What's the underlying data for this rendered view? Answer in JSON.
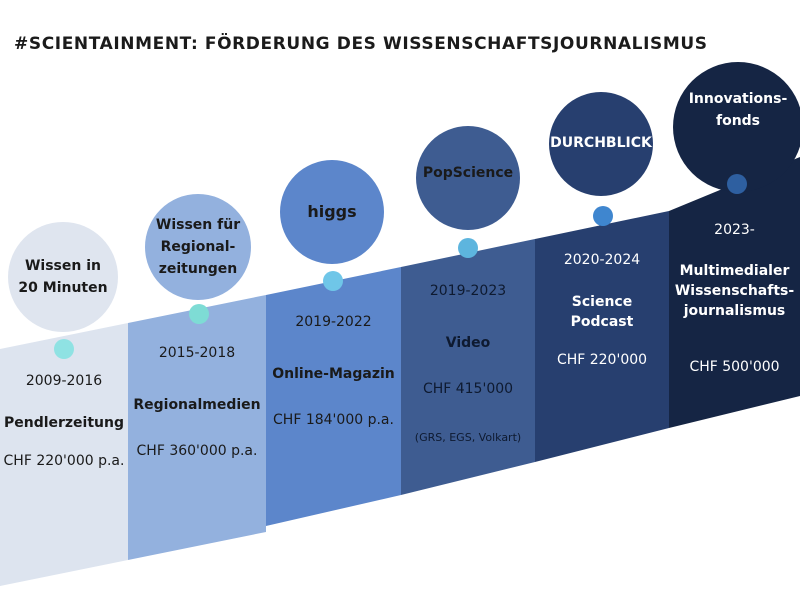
{
  "title": "#SCIENTAINMENT: FÖRDERUNG DES WISSENSCHAFTSJOURNALISMUS",
  "colors": {
    "col1": "#dde4ef",
    "col2": "#93b1de",
    "col3": "#5c86cb",
    "col4": "#3e5c91",
    "col5": "#273f6f",
    "col6": "#152544",
    "bubble1": "#dfe5ef",
    "bubble2": "#93b1de",
    "bubble3": "#5c86cb",
    "bubble4": "#3e5c91",
    "bubble5": "#273f6f",
    "bubble6": "#152544",
    "dot_cyan": "#8fe2e3",
    "dot_teal": "#7edcd5",
    "dot_sky": "#6fc6e8",
    "dot_steel": "#5db5de",
    "dot_blue": "#3f86cf",
    "dot_navy": "#2e5fa0"
  },
  "items": [
    {
      "bubble": "Wissen in\n20 Minuten",
      "years": "2009-2016",
      "name": "Pendlerzeitung",
      "amount": "CHF 220'000 p.a.",
      "note": ""
    },
    {
      "bubble": "Wissen für\nRegional-\nzeitungen",
      "years": "2015-2018",
      "name": "Regionalmedien",
      "amount": "CHF 360'000 p.a.",
      "note": ""
    },
    {
      "bubble": "higgs",
      "years": "2019-2022",
      "name": "Online-Magazin",
      "amount": "CHF 184'000 p.a.",
      "note": ""
    },
    {
      "bubble": "PopScience",
      "years": "2019-2023",
      "name": "Video",
      "amount": "CHF 415'000",
      "note": "(GRS, EGS, Volkart)"
    },
    {
      "bubble": "DURCHBLICK",
      "years": "2020-2024",
      "name": "Science\nPodcast",
      "amount": "CHF 220'000",
      "note": ""
    },
    {
      "bubble": "Innovations-\nfonds",
      "years": "2023-",
      "name": "Multimedialer\nWissenschafts-\njournalismus",
      "amount": "CHF 500'000",
      "note": ""
    }
  ]
}
